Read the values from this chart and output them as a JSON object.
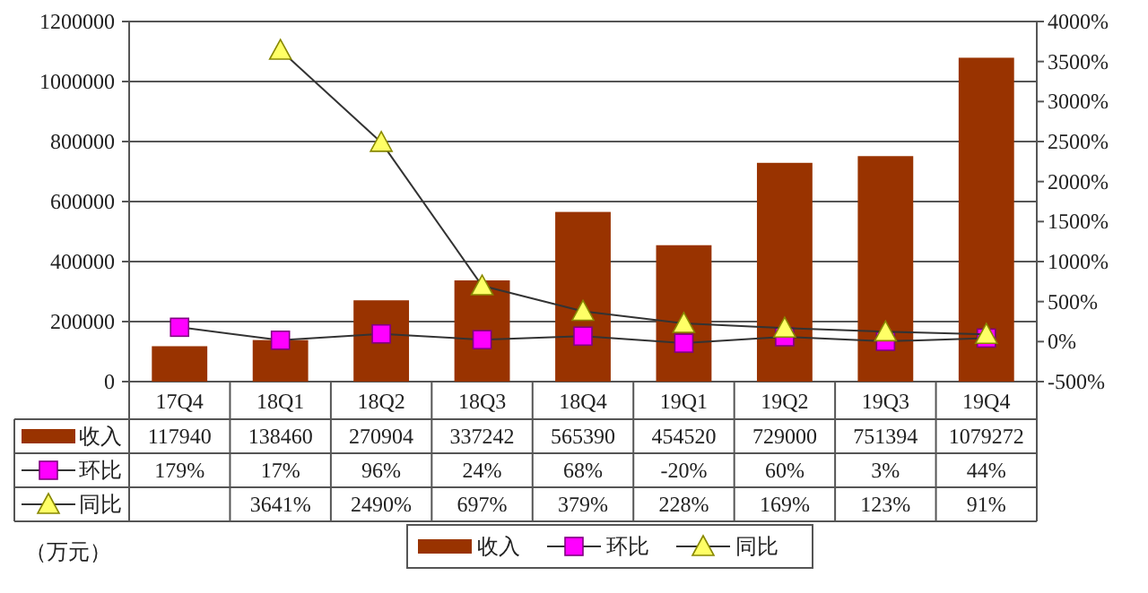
{
  "chart_data": {
    "type": "bar",
    "categories": [
      "17Q4",
      "18Q1",
      "18Q2",
      "18Q3",
      "18Q4",
      "19Q1",
      "19Q2",
      "19Q3",
      "19Q4"
    ],
    "series": [
      {
        "name": "收入",
        "color": "#993300",
        "values": [
          117940,
          138460,
          270904,
          337242,
          565390,
          454520,
          729000,
          751394,
          1079272
        ],
        "value_labels": [
          "117940",
          "138460",
          "270904",
          "337242",
          "565390",
          "454520",
          "729000",
          "751394",
          "1079272"
        ]
      },
      {
        "name": "环比",
        "type": "line",
        "axis": "y2",
        "marker": "square",
        "color": "#ff00ff",
        "values": [
          179,
          17,
          96,
          24,
          68,
          -20,
          60,
          3,
          44
        ],
        "value_labels": [
          "179%",
          "17%",
          "96%",
          "24%",
          "68%",
          "-20%",
          "60%",
          "3%",
          "44%"
        ]
      },
      {
        "name": "同比",
        "type": "line",
        "axis": "y2",
        "marker": "triangle",
        "color": "#ffff66",
        "values": [
          null,
          3641,
          2490,
          697,
          379,
          228,
          169,
          123,
          91
        ],
        "value_labels": [
          null,
          "3641%",
          "2490%",
          "697%",
          "379%",
          "228%",
          "169%",
          "123%",
          "91%"
        ]
      }
    ],
    "ylim": [
      0,
      1200000
    ],
    "yticks": [
      0,
      200000,
      400000,
      600000,
      800000,
      1000000,
      1200000
    ],
    "y2lim": [
      -500,
      4000
    ],
    "y2ticks": [
      {
        "value": -500,
        "label": "-500%"
      },
      {
        "value": 0,
        "label": "0%"
      },
      {
        "value": 500,
        "label": "500%"
      },
      {
        "value": 1000,
        "label": "1000%"
      },
      {
        "value": 1500,
        "label": "1500%"
      },
      {
        "value": 2000,
        "label": "2000%"
      },
      {
        "value": 2500,
        "label": "2500%"
      },
      {
        "value": 3000,
        "label": "3000%"
      },
      {
        "value": 3500,
        "label": "3500%"
      },
      {
        "value": 4000,
        "label": "4000%"
      }
    ],
    "grid": "y",
    "legend": "bottom",
    "annotations": [
      "（万元）"
    ]
  }
}
